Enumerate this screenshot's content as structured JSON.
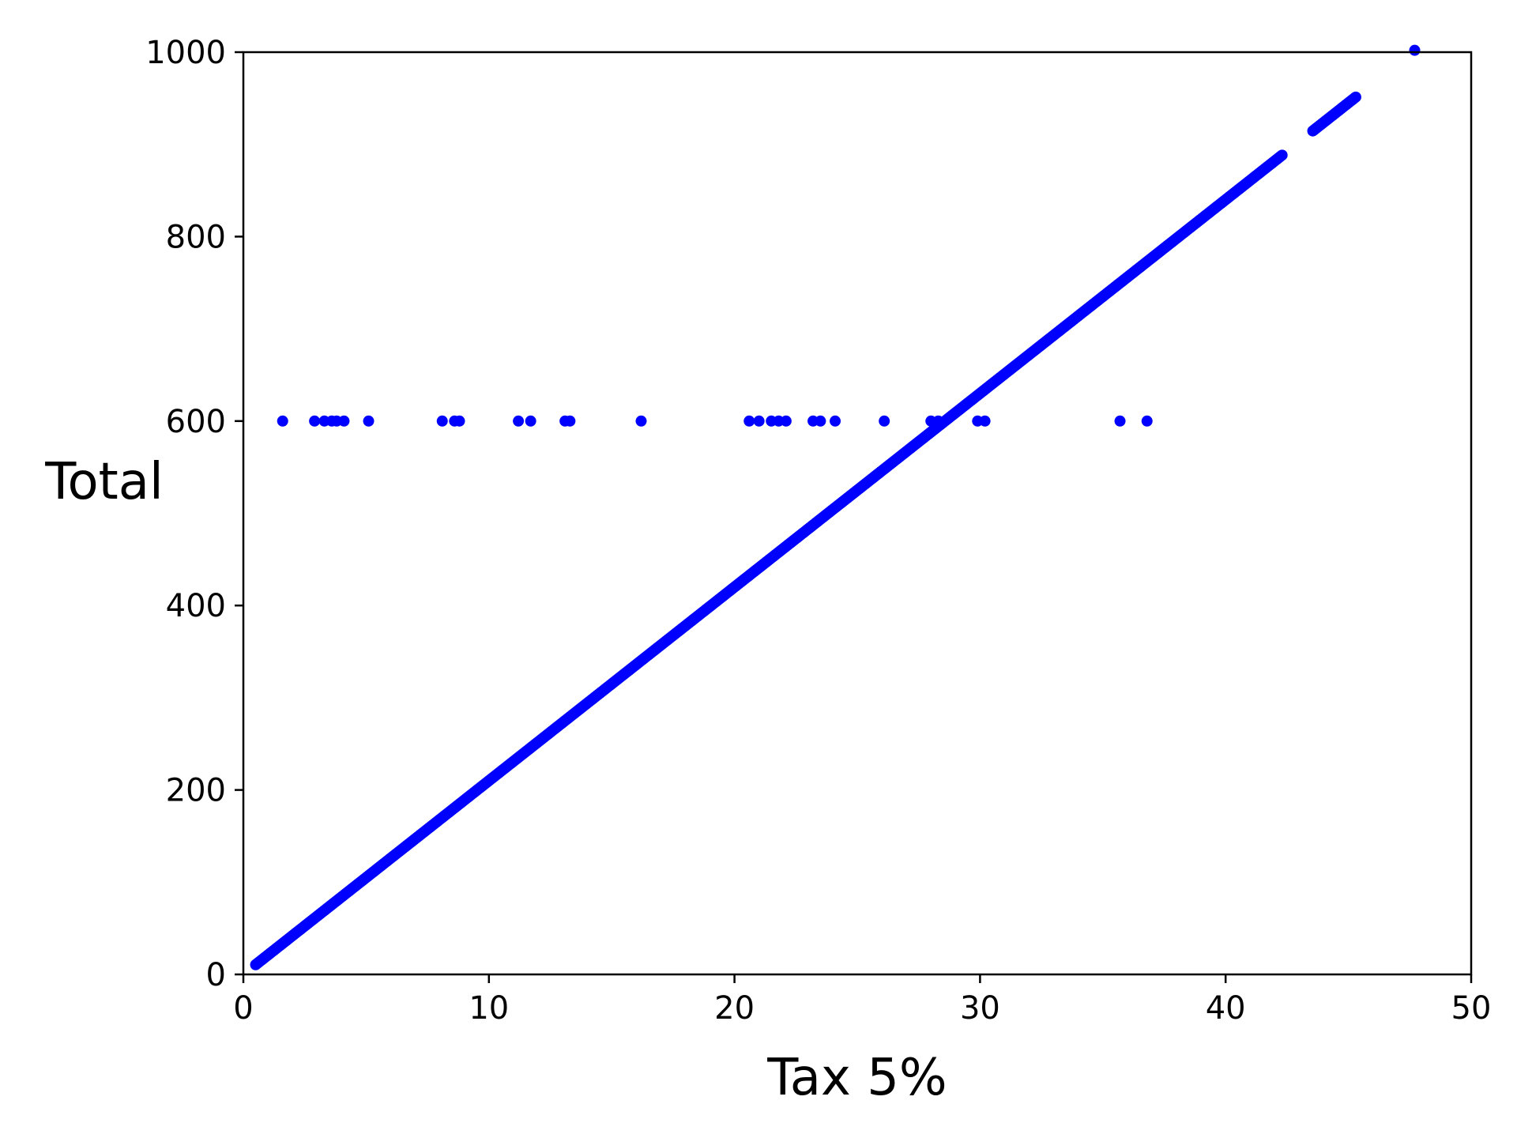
{
  "chart_data": {
    "type": "scatter",
    "title": "",
    "xlabel": "Tax 5%",
    "ylabel": "Total",
    "xlim": [
      0,
      50
    ],
    "ylim": [
      0,
      1000
    ],
    "x_ticks": [
      0,
      10,
      20,
      30,
      40,
      50
    ],
    "y_ticks": [
      0,
      200,
      400,
      600,
      800,
      1000
    ],
    "x_tick_labels": [
      "0",
      "10",
      "20",
      "30",
      "40",
      "50"
    ],
    "y_tick_labels": [
      "0",
      "200",
      "400",
      "600",
      "800",
      "1000"
    ],
    "grid": false,
    "legend": "none",
    "marker_color": "#0000ff",
    "series": [
      {
        "marker": "circle",
        "trend": {
          "relation": "Total = 21 × Tax 5%",
          "x_range": [
            0.5,
            45.3
          ],
          "gaps_x": [
            [
              42.3,
              43.5
            ],
            [
              45.3,
              47.7
            ]
          ]
        },
        "points": [
          {
            "x": 47.7,
            "y": 1002
          },
          {
            "x": 1.6,
            "y": 600
          },
          {
            "x": 2.9,
            "y": 600
          },
          {
            "x": 3.3,
            "y": 600
          },
          {
            "x": 3.6,
            "y": 600
          },
          {
            "x": 3.8,
            "y": 600
          },
          {
            "x": 4.1,
            "y": 600
          },
          {
            "x": 5.1,
            "y": 600
          },
          {
            "x": 8.1,
            "y": 600
          },
          {
            "x": 8.6,
            "y": 600
          },
          {
            "x": 8.8,
            "y": 600
          },
          {
            "x": 11.2,
            "y": 600
          },
          {
            "x": 11.7,
            "y": 600
          },
          {
            "x": 13.1,
            "y": 600
          },
          {
            "x": 13.3,
            "y": 600
          },
          {
            "x": 16.2,
            "y": 600
          },
          {
            "x": 20.6,
            "y": 600
          },
          {
            "x": 21.0,
            "y": 600
          },
          {
            "x": 21.5,
            "y": 600
          },
          {
            "x": 21.8,
            "y": 600
          },
          {
            "x": 22.1,
            "y": 600
          },
          {
            "x": 23.2,
            "y": 600
          },
          {
            "x": 23.5,
            "y": 600
          },
          {
            "x": 24.1,
            "y": 600
          },
          {
            "x": 26.1,
            "y": 600
          },
          {
            "x": 28.0,
            "y": 600
          },
          {
            "x": 28.3,
            "y": 600
          },
          {
            "x": 29.9,
            "y": 600
          },
          {
            "x": 30.2,
            "y": 600
          },
          {
            "x": 35.7,
            "y": 600
          },
          {
            "x": 36.8,
            "y": 600
          }
        ]
      }
    ]
  }
}
